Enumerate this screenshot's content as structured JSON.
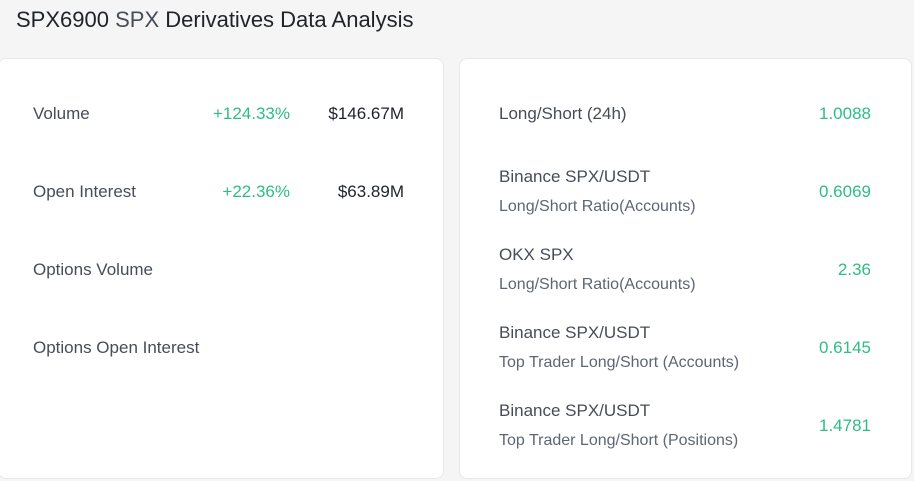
{
  "header": {
    "ticker": "SPX6900",
    "symbol": "SPX",
    "title": "Derivatives Data Analysis"
  },
  "left_panel": {
    "rows": [
      {
        "label": "Volume",
        "change": "+124.33%",
        "amount": "$146.67M"
      },
      {
        "label": "Open Interest",
        "change": "+22.36%",
        "amount": "$63.89M"
      },
      {
        "label": "Options Volume"
      },
      {
        "label": "Options Open Interest"
      }
    ]
  },
  "right_panel": {
    "rows": [
      {
        "line1": "Long/Short (24h)",
        "value": "1.0088"
      },
      {
        "line1": "Binance SPX/USDT",
        "line2": "Long/Short Ratio(Accounts)",
        "value": "0.6069"
      },
      {
        "line1": "OKX SPX",
        "line2": "Long/Short Ratio(Accounts)",
        "value": "2.36"
      },
      {
        "line1": "Binance SPX/USDT",
        "line2": "Top Trader Long/Short (Accounts)",
        "value": "0.6145"
      },
      {
        "line1": "Binance SPX/USDT",
        "line2": "Top Trader Long/Short (Positions)",
        "value": "1.4781"
      }
    ]
  },
  "colors": {
    "positive": "#2ebd85",
    "text_primary": "#1e2329",
    "text_secondary": "#474d57"
  }
}
